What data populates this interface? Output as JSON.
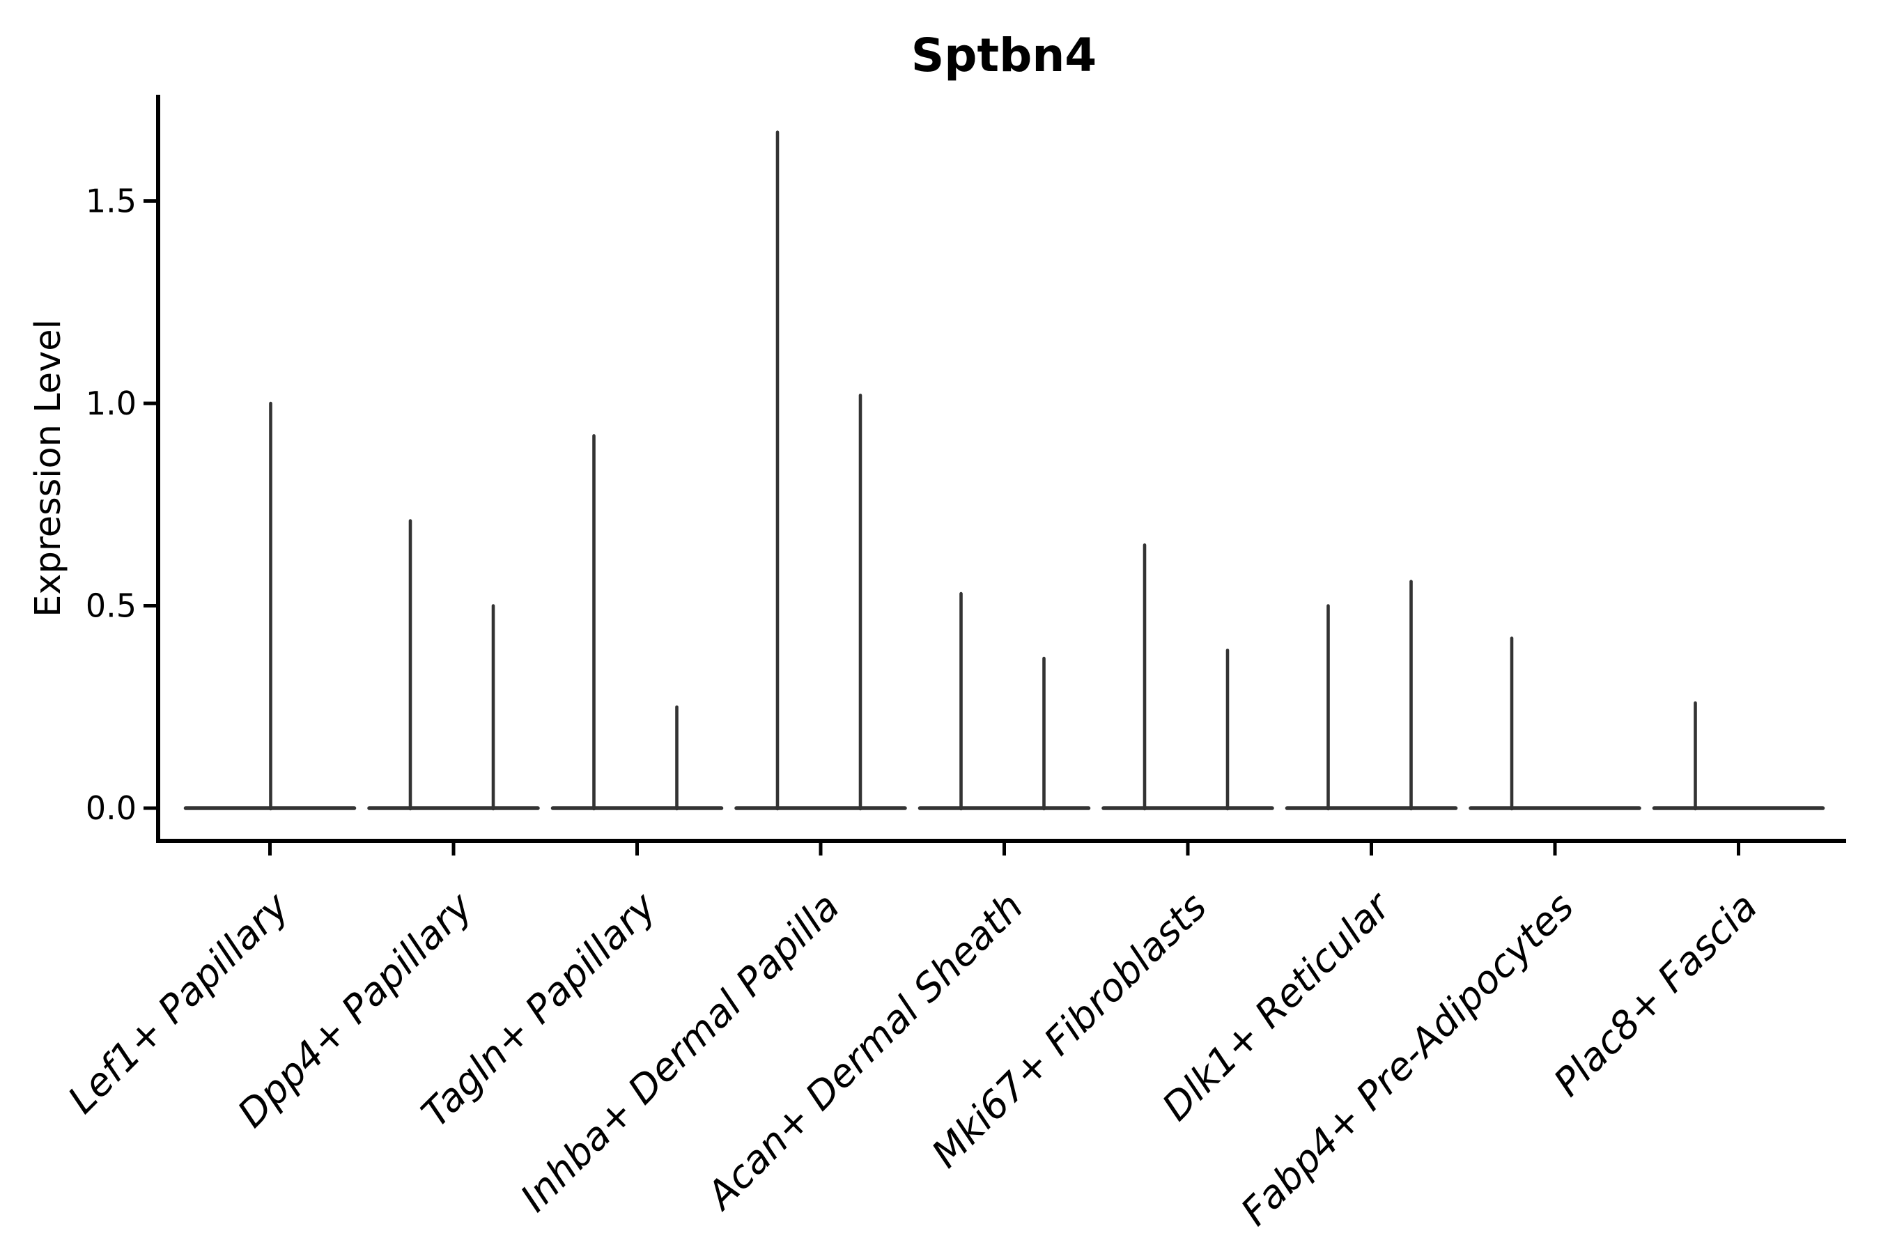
{
  "figure": {
    "title": "Sptbn4",
    "ylabel": "Expression Level"
  },
  "chart_data": {
    "type": "violin",
    "title": "Sptbn4",
    "xlabel": "",
    "ylabel": "Expression Level",
    "legend": "none",
    "grid": false,
    "background_color": "#ffffff",
    "axis_color": "#000000",
    "violin_color": "#333333",
    "ylim": [
      -0.08,
      1.77
    ],
    "yticks": [
      "0.0",
      "0.5",
      "1.0",
      "1.5"
    ],
    "ytick_values": [
      0,
      0.5,
      1.0,
      1.5
    ],
    "baseline_value": 0,
    "categories": [
      "Lef1+ Papillary",
      "Dpp4+ Papillary",
      "Tagln+ Papillary",
      "Inhba+ Dermal Papilla",
      "Acan+ Dermal Sheath",
      "Mki67+ Fibroblasts",
      "Dlk1+ Reticular",
      "Fabp4+ Pre-Adipocytes",
      "Plac8+ Fascia"
    ],
    "series": [
      {
        "category": "Lef1+ Papillary",
        "violins": [
          {
            "position": "center",
            "max_expression": 1.0
          }
        ]
      },
      {
        "category": "Dpp4+ Papillary",
        "violins": [
          {
            "position": "left",
            "max_expression": 0.71
          },
          {
            "position": "right",
            "max_expression": 0.5
          }
        ]
      },
      {
        "category": "Tagln+ Papillary",
        "violins": [
          {
            "position": "left",
            "max_expression": 0.92
          },
          {
            "position": "right",
            "max_expression": 0.25
          }
        ]
      },
      {
        "category": "Inhba+ Dermal Papilla",
        "violins": [
          {
            "position": "left",
            "max_expression": 1.67
          },
          {
            "position": "right",
            "max_expression": 1.02
          }
        ]
      },
      {
        "category": "Acan+ Dermal Sheath",
        "violins": [
          {
            "position": "left",
            "max_expression": 0.53
          },
          {
            "position": "right",
            "max_expression": 0.37
          }
        ]
      },
      {
        "category": "Mki67+ Fibroblasts",
        "violins": [
          {
            "position": "left",
            "max_expression": 0.65
          },
          {
            "position": "right",
            "max_expression": 0.39
          }
        ]
      },
      {
        "category": "Dlk1+ Reticular",
        "violins": [
          {
            "position": "left",
            "max_expression": 0.5
          },
          {
            "position": "right",
            "max_expression": 0.56
          }
        ]
      },
      {
        "category": "Fabp4+ Pre-Adipocytes",
        "violins": [
          {
            "position": "left",
            "max_expression": 0.42
          }
        ]
      },
      {
        "category": "Plac8+ Fascia",
        "violins": [
          {
            "position": "left",
            "max_expression": 0.26
          }
        ]
      }
    ]
  }
}
